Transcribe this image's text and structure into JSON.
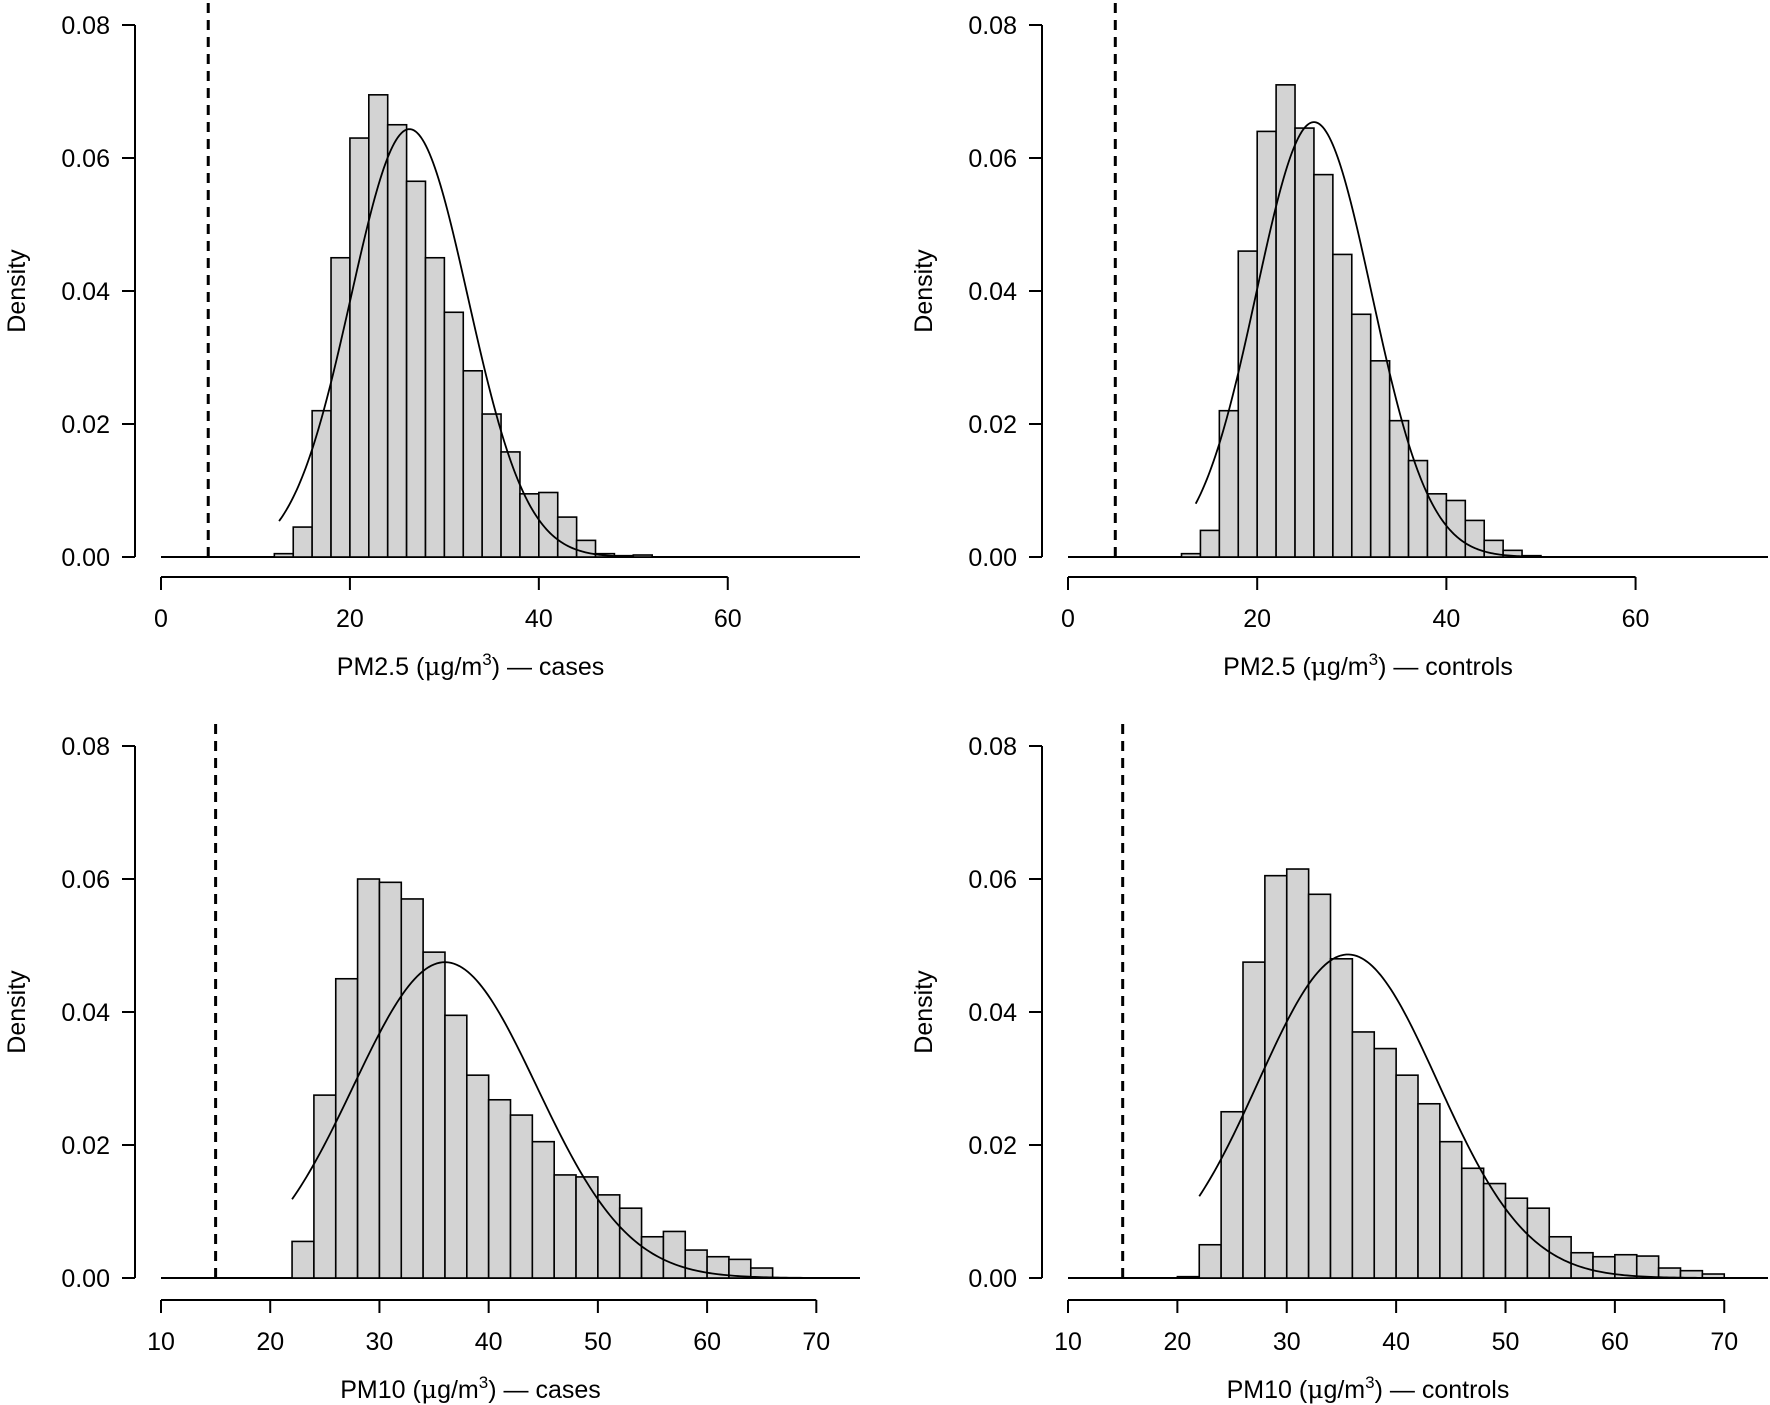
{
  "chart_data": [
    {
      "type": "bar",
      "xlabel": "PM2.5 (μg/m3) — cases",
      "xlabel_parts": [
        "PM2.5 (",
        "μ",
        "g/m",
        "3",
        ") — cases"
      ],
      "ylabel": "Density",
      "xlim": [
        0,
        74
      ],
      "ylim": [
        0,
        0.08
      ],
      "xticks": [
        0,
        20,
        40,
        60
      ],
      "yticks": [
        "0.00",
        "0.02",
        "0.04",
        "0.06",
        "0.08"
      ],
      "bin_width": 2,
      "bins_start": [
        12,
        14,
        16,
        18,
        20,
        22,
        24,
        26,
        28,
        30,
        32,
        34,
        36,
        38,
        40,
        42,
        44,
        46,
        48,
        50
      ],
      "values": [
        0.0005,
        0.0045,
        0.022,
        0.045,
        0.063,
        0.0695,
        0.065,
        0.0565,
        0.045,
        0.0368,
        0.028,
        0.0215,
        0.0158,
        0.0095,
        0.0097,
        0.006,
        0.0025,
        0.0005,
        0.0002,
        0.0003
      ],
      "normal_curve": {
        "mean": 26.3,
        "sd": 6.2,
        "x_from": 12.5,
        "x_to": 50
      },
      "reference_line_x": 5,
      "bar_color": "#d3d3d3"
    },
    {
      "type": "bar",
      "xlabel": "PM2.5 (μg/m3) — controls",
      "xlabel_parts": [
        "PM2.5 (",
        "μ",
        "g/m",
        "3",
        ") — controls"
      ],
      "ylabel": "Density",
      "xlim": [
        0,
        74
      ],
      "ylim": [
        0,
        0.08
      ],
      "xticks": [
        0,
        20,
        40,
        60
      ],
      "yticks": [
        "0.00",
        "0.02",
        "0.04",
        "0.06",
        "0.08"
      ],
      "bin_width": 2,
      "bins_start": [
        12,
        14,
        16,
        18,
        20,
        22,
        24,
        26,
        28,
        30,
        32,
        34,
        36,
        38,
        40,
        42,
        44,
        46,
        48
      ],
      "values": [
        0.0005,
        0.004,
        0.022,
        0.046,
        0.064,
        0.071,
        0.0645,
        0.0575,
        0.0455,
        0.0365,
        0.0295,
        0.0205,
        0.0145,
        0.0095,
        0.0085,
        0.0055,
        0.0025,
        0.001,
        0.0002
      ],
      "normal_curve": {
        "mean": 26.0,
        "sd": 6.1,
        "x_from": 13.5,
        "x_to": 48
      },
      "reference_line_x": 5,
      "bar_color": "#d3d3d3"
    },
    {
      "type": "bar",
      "xlabel": "PM10 (μg/m3) — cases",
      "xlabel_parts": [
        "PM10 (",
        "μ",
        "g/m",
        "3",
        ") — cases"
      ],
      "ylabel": "Density",
      "xlim": [
        10,
        74
      ],
      "ylim": [
        0,
        0.08
      ],
      "xticks": [
        10,
        20,
        30,
        40,
        50,
        60,
        70
      ],
      "yticks": [
        "0.00",
        "0.02",
        "0.04",
        "0.06",
        "0.08"
      ],
      "bin_width": 2,
      "bins_start": [
        22,
        24,
        26,
        28,
        30,
        32,
        34,
        36,
        38,
        40,
        42,
        44,
        46,
        48,
        50,
        52,
        54,
        56,
        58,
        60,
        62,
        64
      ],
      "values": [
        0.0055,
        0.0275,
        0.045,
        0.06,
        0.0595,
        0.057,
        0.049,
        0.0395,
        0.0305,
        0.0268,
        0.0245,
        0.0205,
        0.0155,
        0.0152,
        0.0125,
        0.0105,
        0.0062,
        0.007,
        0.0042,
        0.0032,
        0.0028,
        0.0015
      ],
      "normal_curve": {
        "mean": 36.0,
        "sd": 8.4,
        "x_from": 22,
        "x_to": 74
      },
      "reference_line_x": 15,
      "bar_color": "#d3d3d3"
    },
    {
      "type": "bar",
      "xlabel": "PM10 (μg/m3) — controls",
      "xlabel_parts": [
        "PM10 (",
        "μ",
        "g/m",
        "3",
        ") — controls"
      ],
      "ylabel": "Density",
      "xlim": [
        10,
        74
      ],
      "ylim": [
        0,
        0.08
      ],
      "xticks": [
        10,
        20,
        30,
        40,
        50,
        60,
        70
      ],
      "yticks": [
        "0.00",
        "0.02",
        "0.04",
        "0.06",
        "0.08"
      ],
      "bin_width": 2,
      "bins_start": [
        20,
        22,
        24,
        26,
        28,
        30,
        32,
        34,
        36,
        38,
        40,
        42,
        44,
        46,
        48,
        50,
        52,
        54,
        56,
        58,
        60,
        62,
        64,
        66,
        68
      ],
      "values": [
        0.0002,
        0.005,
        0.025,
        0.0475,
        0.0605,
        0.0615,
        0.0577,
        0.048,
        0.037,
        0.0345,
        0.0305,
        0.0262,
        0.0205,
        0.0165,
        0.0142,
        0.012,
        0.0105,
        0.0062,
        0.0038,
        0.0032,
        0.0035,
        0.0033,
        0.0015,
        0.0011,
        0.0006
      ],
      "normal_curve": {
        "mean": 35.6,
        "sd": 8.2,
        "x_from": 22,
        "x_to": 70
      },
      "reference_line_x": 15,
      "bar_color": "#d3d3d3"
    }
  ]
}
